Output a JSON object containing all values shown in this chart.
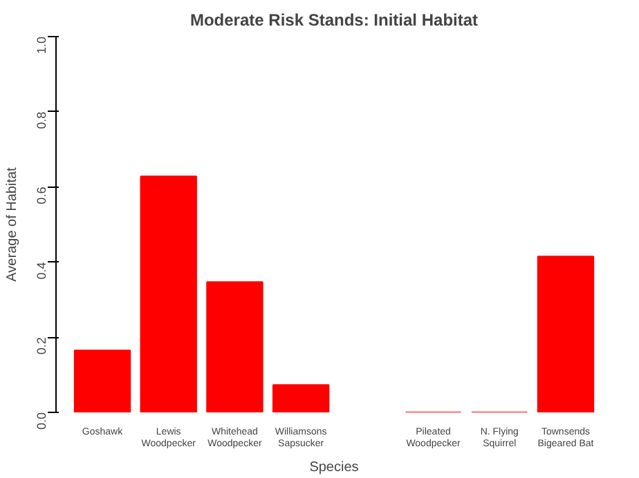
{
  "chart_data": {
    "type": "bar",
    "title": "Moderate Risk Stands: Initial Habitat",
    "xlabel": "Species",
    "ylabel": "Average of Habitat",
    "categories": [
      "Goshawk",
      "Lewis\nWoodpecker",
      "Whitehead\nWoodpecker",
      "Williamsons\nSapsucker",
      null,
      "Pileated\nWoodpecker",
      "N. Flying\nSquirrel",
      "Townsends\nBigeared Bat"
    ],
    "values": [
      0.165,
      0.628,
      0.347,
      0.073,
      null,
      0,
      0,
      0.415
    ],
    "color": "#ff0000",
    "ylim": [
      0,
      1
    ],
    "yticks": [
      {
        "value": 0,
        "label": "0.0"
      },
      0.2,
      0.4,
      0.6,
      0.8,
      {
        "value": 1,
        "label": "1.0"
      }
    ],
    "grid": false
  }
}
